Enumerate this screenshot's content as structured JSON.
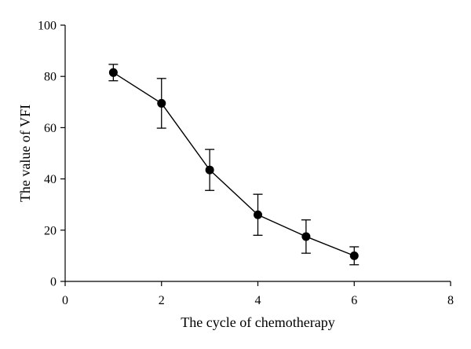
{
  "chart_data": {
    "type": "line",
    "title": "",
    "xlabel": "The cycle of chemotherapy",
    "ylabel": "The value of VFI",
    "xlim": [
      0,
      8
    ],
    "ylim": [
      0,
      100
    ],
    "x_ticks": [
      0,
      2,
      4,
      6,
      8
    ],
    "y_ticks": [
      0,
      20,
      40,
      60,
      80,
      100
    ],
    "grid": false,
    "legend": "none",
    "series": [
      {
        "x": [
          1,
          2,
          3,
          4,
          5,
          6
        ],
        "values": [
          81.5,
          69.5,
          43.5,
          26,
          17.5,
          10
        ],
        "error": [
          3.2,
          9.7,
          8,
          8,
          6.5,
          3.5
        ],
        "color": "#000000",
        "marker": "circle"
      }
    ]
  }
}
